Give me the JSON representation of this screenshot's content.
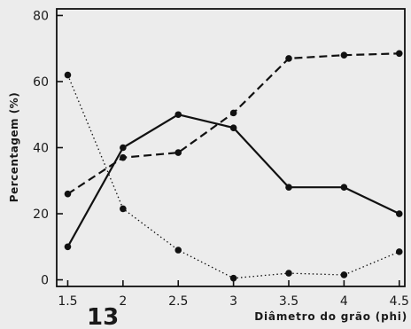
{
  "chart_data": {
    "type": "line",
    "xlabel": "Diâmetro do grão (phi)",
    "ylabel": "Percentagem (%)",
    "figure_number": "13",
    "x": [
      1.5,
      2,
      2.5,
      3,
      3.5,
      4,
      4.5
    ],
    "x_tick_labels": [
      "1.5",
      "2",
      "2.5",
      "3",
      "3.5",
      "4",
      "4.5"
    ],
    "y_ticks": [
      0,
      20,
      40,
      60,
      80
    ],
    "y_tick_labels": [
      "0",
      "20",
      "40",
      "60",
      "80"
    ],
    "xlim": [
      1.4,
      4.55
    ],
    "ylim": [
      -2,
      82
    ],
    "grid": false,
    "legend": false,
    "series": [
      {
        "style": "solid",
        "values": [
          10,
          40,
          50,
          46,
          28,
          28,
          20
        ]
      },
      {
        "style": "dashed",
        "values": [
          26,
          37,
          38.5,
          50.5,
          67,
          68,
          68.5
        ]
      },
      {
        "style": "dotted",
        "values": [
          62,
          21.5,
          9,
          0.5,
          2,
          1.5,
          8.5
        ]
      }
    ],
    "line_color": "#111111",
    "background_color": "#ececec"
  }
}
